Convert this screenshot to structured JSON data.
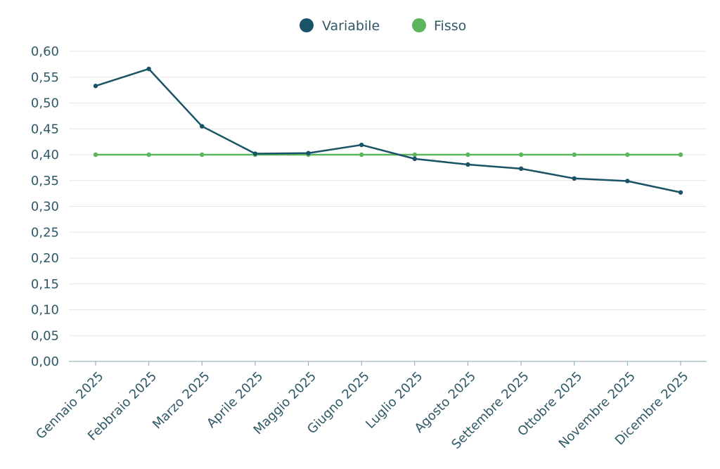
{
  "chart_data": {
    "type": "line",
    "title": "",
    "xlabel": "",
    "ylabel": "",
    "categories": [
      "Gennaio 2025",
      "Febbraio 2025",
      "Marzo 2025",
      "Aprile 2025",
      "Maggio 2025",
      "Giugno 2025",
      "Luglio 2025",
      "Agosto 2025",
      "Settembre 2025",
      "Ottobre 2025",
      "Novembre 2025",
      "Dicembre 2025"
    ],
    "series": [
      {
        "name": "Variabile",
        "color": "#1a5266",
        "values": [
          0.533,
          0.566,
          0.455,
          0.402,
          0.403,
          0.419,
          0.392,
          0.381,
          0.373,
          0.354,
          0.349,
          0.327
        ]
      },
      {
        "name": "Fisso",
        "color": "#5bb55c",
        "values": [
          0.4,
          0.4,
          0.4,
          0.4,
          0.4,
          0.4,
          0.4,
          0.4,
          0.4,
          0.4,
          0.4,
          0.4
        ]
      }
    ],
    "ylim": [
      0,
      0.6
    ],
    "yticks": [
      "0,00",
      "0,05",
      "0,10",
      "0,15",
      "0,20",
      "0,25",
      "0,30",
      "0,35",
      "0,40",
      "0,45",
      "0,50",
      "0,55",
      "0,60"
    ],
    "grid": true,
    "legend_position": "top-center"
  }
}
